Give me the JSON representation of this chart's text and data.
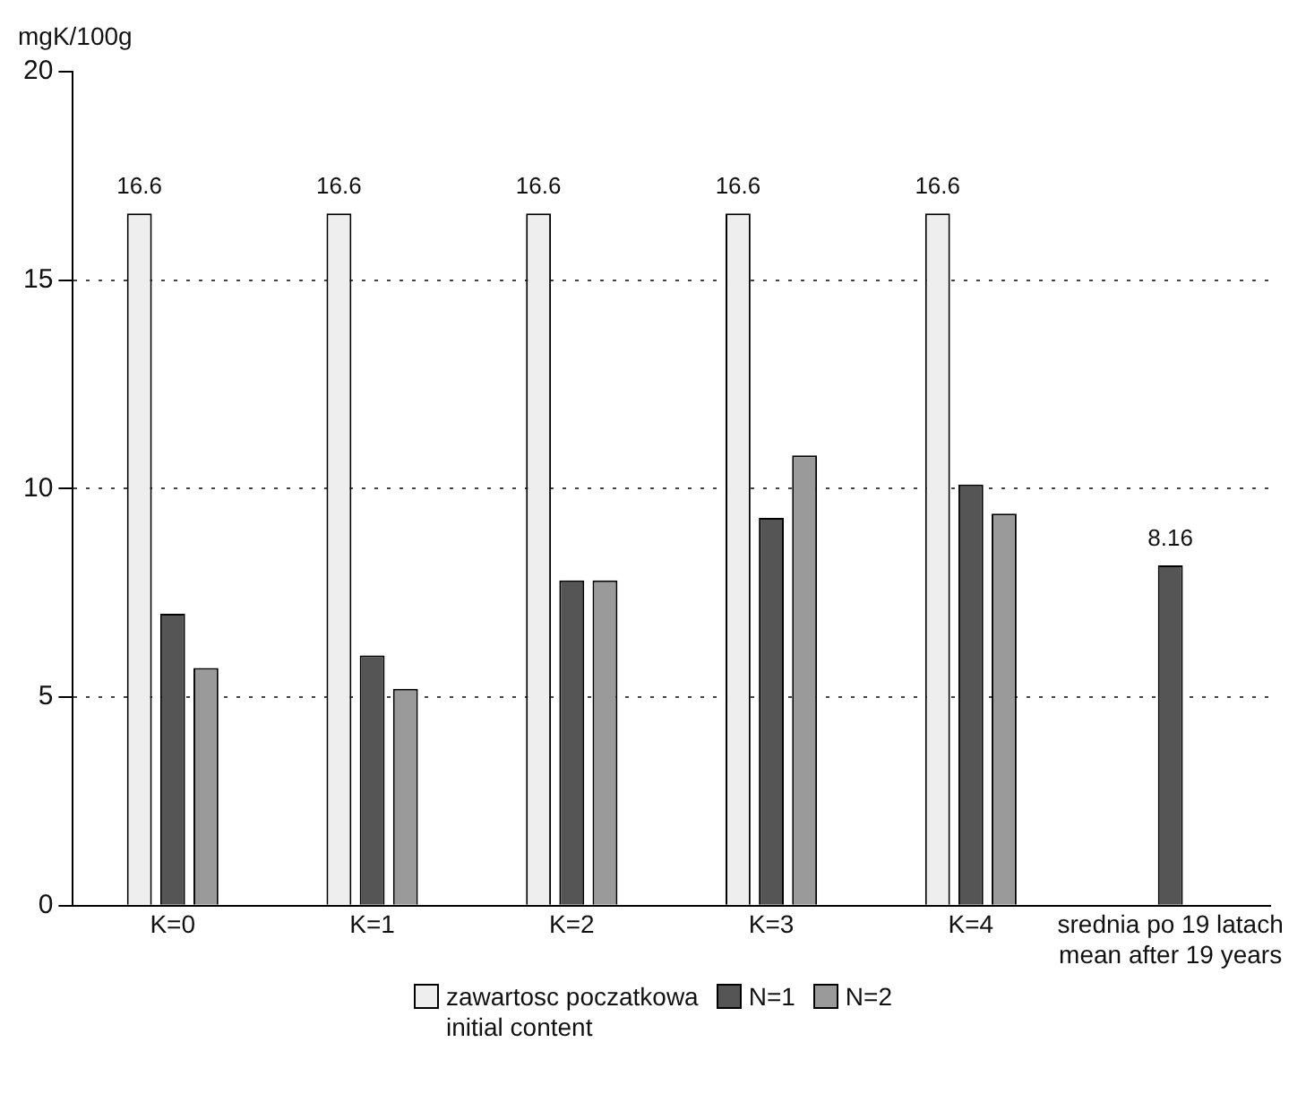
{
  "chart_data": {
    "type": "bar",
    "ylabel": "mgK/100g",
    "categories": [
      "K=0",
      "K=1",
      "K=2",
      "K=3",
      "K=4",
      "srednia po 19 latach\nmean after 19 years"
    ],
    "series": [
      {
        "name": "zawartosc poczatkowa\ninitial content",
        "color": "#eeeeee",
        "values": [
          16.6,
          16.6,
          16.6,
          16.6,
          16.6,
          null
        ],
        "value_labels": [
          "16.6",
          "16.6",
          "16.6",
          "16.6",
          "16.6",
          null
        ]
      },
      {
        "name": "N=1",
        "color": "#555555",
        "values": [
          7.0,
          6.0,
          7.8,
          9.3,
          10.1,
          8.16
        ],
        "value_labels": [
          null,
          null,
          null,
          null,
          null,
          "8.16"
        ]
      },
      {
        "name": "N=2",
        "color": "#9a9a9a",
        "values": [
          5.7,
          5.2,
          7.8,
          10.8,
          9.4,
          null
        ]
      }
    ],
    "ylim": [
      0,
      20
    ],
    "yticks": [
      0,
      5,
      10,
      15,
      20
    ],
    "grid": "y",
    "legend": "bottom"
  }
}
